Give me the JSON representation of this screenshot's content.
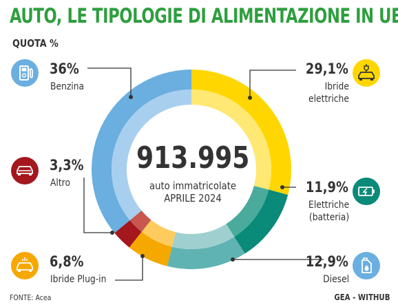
{
  "header": {
    "title": "AUTO, LE TIPOLOGIE DI ALIMENTAZIONE IN UE",
    "subtitle": "QUOTA %"
  },
  "center": {
    "total": "913.995",
    "line1": "auto immatricolate",
    "line2": "APRILE 2024"
  },
  "footer": {
    "source": "FONTE: Acea",
    "credit": "GEA - WITHUB"
  },
  "chart_data": {
    "type": "pie",
    "variant": "donut",
    "unit": "%",
    "slices": [
      {
        "label": "Ibride elettriche",
        "label_lines": [
          "Ibride",
          "elettriche"
        ],
        "value": 29.1,
        "display": "29,1%",
        "color": "#ffd600",
        "inner_color": "#ffe873",
        "icon": "hybrid-car-plug-icon"
      },
      {
        "label": "Elettriche (batteria)",
        "label_lines": [
          "Elettriche",
          "(batteria)"
        ],
        "value": 11.9,
        "display": "11,9%",
        "color": "#0a8a78",
        "inner_color": "#4aab9c",
        "icon": "battery-charging-icon"
      },
      {
        "label": "Diesel",
        "label_lines": [
          "Diesel"
        ],
        "value": 12.9,
        "display": "12,9%",
        "color": "#5fb3b3",
        "inner_color": "#9fd0cf",
        "icon": "fuel-can-icon"
      },
      {
        "label": "Ibride Plug-in",
        "label_lines": [
          "Ibride Plug-in"
        ],
        "value": 6.8,
        "display": "6,8%",
        "color": "#f5a800",
        "inner_color": "#ffcb5e",
        "icon": "plugin-car-icon"
      },
      {
        "label": "Altro",
        "label_lines": [
          "Altro"
        ],
        "value": 3.3,
        "display": "3,3%",
        "color": "#a3171d",
        "inner_color": "#c8574f",
        "icon": "car-icon"
      },
      {
        "label": "Benzina",
        "label_lines": [
          "Benzina"
        ],
        "value": 36,
        "display": "36%",
        "color": "#6aafe0",
        "inner_color": "#a9cfef",
        "icon": "fuel-pump-icon"
      }
    ]
  },
  "icons": {
    "benzina_bg": "#6aafe0",
    "altro_bg": "#a3171d",
    "plugin_bg": "#f5a800",
    "ibride_bg": "#ffd600",
    "elettriche_bg": "#0a8a78",
    "diesel_bg": "#6aafe0"
  }
}
